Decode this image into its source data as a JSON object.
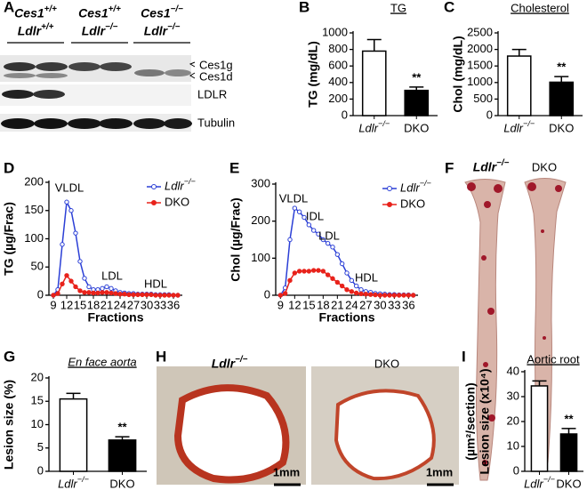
{
  "blot": {
    "panel_label": "A",
    "genotypes": [
      [
        "Ces1+/+",
        "Ldlr+/+"
      ],
      [
        "Ces1+/+",
        "Ldlr−/−"
      ],
      [
        "Ces1−/−",
        "Ldlr−/−"
      ]
    ],
    "bands": [
      "Ces1g",
      "Ces1d",
      "LDLR",
      "Tubulin"
    ]
  },
  "aorta_photo": {
    "panel_label": "F",
    "labels": [
      "Ldlr−/−",
      "DKO"
    ]
  },
  "histology": {
    "panel_label": "H",
    "labels": [
      "Ldlr−/−",
      "DKO"
    ],
    "scale_bars": [
      "1mm",
      "1mm"
    ]
  },
  "chart_data": [
    {
      "type": "bar",
      "panel_label": "B",
      "title": "TG",
      "y_label": "TG (mg/dL)",
      "categories": [
        "Ldlr−/−",
        "DKO"
      ],
      "values": [
        780,
        305
      ],
      "errors": [
        140,
        40
      ],
      "colors": [
        "#ffffff",
        "#000000"
      ],
      "annotation": "**",
      "ylim": [
        0,
        1000
      ],
      "yticks": [
        0,
        200,
        400,
        600,
        800,
        1000
      ]
    },
    {
      "type": "bar",
      "panel_label": "C",
      "title": "Cholesterol",
      "y_label": "Chol (mg/dL)",
      "categories": [
        "Ldlr−/−",
        "DKO"
      ],
      "values": [
        1800,
        1010
      ],
      "errors": [
        200,
        170
      ],
      "colors": [
        "#ffffff",
        "#000000"
      ],
      "annotation": "**",
      "ylim": [
        0,
        2500
      ],
      "yticks": [
        0,
        500,
        1000,
        1500,
        2000,
        2500
      ]
    },
    {
      "type": "line",
      "panel_label": "D",
      "y_label": "TG (µg/Frac)",
      "x_label": "Fractions",
      "x": [
        9,
        10,
        11,
        12,
        13,
        14,
        15,
        16,
        17,
        18,
        19,
        20,
        21,
        22,
        23,
        24,
        25,
        26,
        27,
        28,
        29,
        30,
        31,
        32,
        33,
        34,
        35,
        36,
        37
      ],
      "series": [
        {
          "name": "Ldlr−/−",
          "color": "#2b3fd6",
          "marker": "open",
          "values": [
            0,
            10,
            90,
            165,
            150,
            110,
            60,
            30,
            15,
            10,
            10,
            12,
            15,
            12,
            8,
            5,
            4,
            3,
            3,
            2,
            2,
            2,
            2,
            1,
            1,
            1,
            1,
            0,
            0
          ]
        },
        {
          "name": "DKO",
          "color": "#e8221b",
          "marker": "filled",
          "values": [
            0,
            3,
            20,
            35,
            25,
            15,
            8,
            5,
            5,
            4,
            4,
            5,
            5,
            4,
            3,
            2,
            2,
            1,
            1,
            1,
            1,
            1,
            1,
            0,
            0,
            0,
            0,
            0,
            0
          ]
        }
      ],
      "annotations": [
        "VLDL",
        "LDL",
        "HDL"
      ],
      "legend": "upper right",
      "xlim": [
        8,
        38
      ],
      "xticks": [
        9,
        12,
        15,
        18,
        21,
        24,
        27,
        30,
        33,
        36
      ],
      "ylim": [
        0,
        200
      ],
      "yticks": [
        0,
        50,
        100,
        150,
        200
      ]
    },
    {
      "type": "line",
      "panel_label": "E",
      "y_label": "Chol (µg/Frac)",
      "x_label": "Fractions",
      "x": [
        9,
        10,
        11,
        12,
        13,
        14,
        15,
        16,
        17,
        18,
        19,
        20,
        21,
        22,
        23,
        24,
        25,
        26,
        27,
        28,
        29,
        30,
        31,
        32,
        33,
        34,
        35,
        36,
        37
      ],
      "series": [
        {
          "name": "Ldlr−/−",
          "color": "#2b3fd6",
          "marker": "open",
          "values": [
            0,
            20,
            150,
            235,
            225,
            210,
            190,
            175,
            165,
            150,
            140,
            130,
            110,
            85,
            60,
            40,
            25,
            15,
            10,
            8,
            5,
            4,
            3,
            2,
            2,
            1,
            1,
            1,
            0
          ]
        },
        {
          "name": "DKO",
          "color": "#e8221b",
          "marker": "filled",
          "values": [
            0,
            5,
            40,
            60,
            65,
            65,
            65,
            67,
            67,
            65,
            55,
            45,
            35,
            25,
            15,
            10,
            6,
            4,
            3,
            2,
            1,
            0,
            0,
            0,
            0,
            0,
            0,
            0,
            0
          ]
        }
      ],
      "annotations": [
        "VLDL",
        "IDL",
        "LDL",
        "HDL"
      ],
      "legend": "upper right",
      "xlim": [
        8,
        38
      ],
      "xticks": [
        9,
        12,
        15,
        18,
        21,
        24,
        27,
        30,
        33,
        36
      ],
      "ylim": [
        0,
        300
      ],
      "yticks": [
        0,
        100,
        200,
        300
      ]
    },
    {
      "type": "bar",
      "panel_label": "G",
      "title": "En face aorta",
      "y_label": "Lesion size (%)",
      "categories": [
        "Ldlr−/−",
        "DKO"
      ],
      "values": [
        15.5,
        6.7
      ],
      "errors": [
        1.2,
        0.7
      ],
      "colors": [
        "#ffffff",
        "#000000"
      ],
      "annotation": "**",
      "ylim": [
        0,
        20
      ],
      "yticks": [
        0,
        5,
        10,
        15,
        20
      ]
    },
    {
      "type": "bar",
      "panel_label": "I",
      "title": "Aortic root",
      "y_label": [
        "Lesion size (x10⁴)",
        "(µm²/section)"
      ],
      "categories": [
        "Ldlr−/−",
        "DKO"
      ],
      "values": [
        34.3,
        15
      ],
      "errors": [
        2,
        2.2
      ],
      "colors": [
        "#ffffff",
        "#000000"
      ],
      "annotation": "**",
      "ylim": [
        0,
        40
      ],
      "yticks": [
        0,
        10,
        20,
        30,
        40
      ]
    }
  ]
}
